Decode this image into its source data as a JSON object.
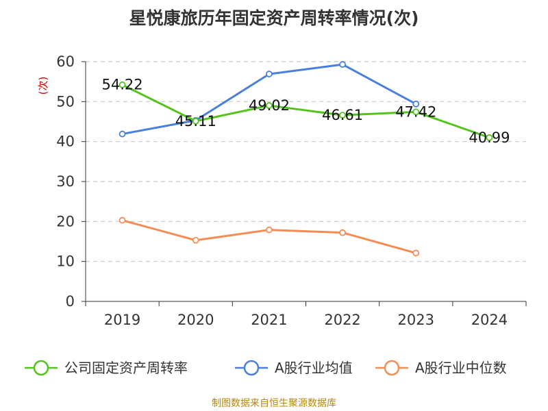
{
  "chart_data": {
    "type": "line",
    "title": "星悦康旅历年固定资产周转率情况(次)",
    "ylabel": "(次)",
    "xlabel": "",
    "categories": [
      "2019",
      "2020",
      "2021",
      "2022",
      "2023",
      "2024"
    ],
    "ylim": [
      0,
      60
    ],
    "yticks": [
      0,
      10,
      20,
      30,
      40,
      50,
      60
    ],
    "grid": true,
    "legend_position": "bottom",
    "series": [
      {
        "name": "公司固定资产周转率",
        "color": "#52c41a",
        "values": [
          54.22,
          45.11,
          49.02,
          46.61,
          47.42,
          40.99
        ],
        "labels": [
          "54.22",
          "45.11",
          "49.02",
          "46.61",
          "47.42",
          "40.99"
        ]
      },
      {
        "name": "A股行业均值",
        "color": "#4a7fdd",
        "values": [
          41.9,
          45.3,
          56.9,
          59.3,
          49.4,
          null
        ]
      },
      {
        "name": "A股行业中位数",
        "color": "#f58c54",
        "values": [
          20.3,
          15.3,
          17.9,
          17.2,
          12.1,
          null
        ]
      }
    ]
  },
  "source": "制图数据来自恒生聚源数据库"
}
